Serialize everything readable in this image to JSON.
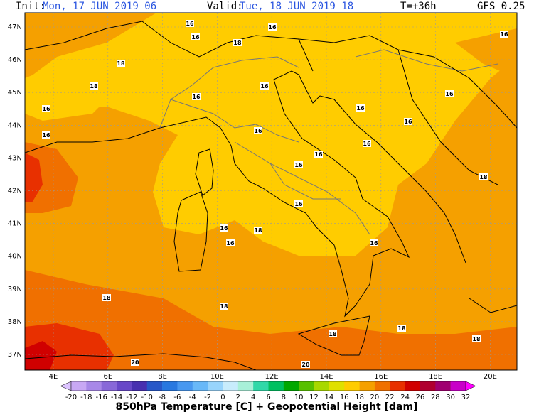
{
  "header": {
    "init_label": "Init:",
    "init_value": "Mon, 17 JUN 2019  06",
    "valid_label": "Valid:",
    "valid_value": "Tue, 18 JUN 2019  18",
    "lead": "T=+36h",
    "model": "GFS 0.25"
  },
  "lat_labels": [
    "47N",
    "46N",
    "45N",
    "44N",
    "43N",
    "42N",
    "41N",
    "40N",
    "39N",
    "38N",
    "37N"
  ],
  "lon_labels": [
    "4E",
    "6E",
    "8E",
    "10E",
    "12E",
    "14E",
    "16E",
    "18E",
    "20E"
  ],
  "contour_labels": [
    "16",
    "16",
    "16",
    "16",
    "18",
    "18",
    "18",
    "16",
    "16",
    "16",
    "16",
    "16",
    "16",
    "16",
    "16",
    "16",
    "16",
    "16",
    "18",
    "16",
    "16",
    "18",
    "16",
    "16",
    "18",
    "18",
    "18",
    "18",
    "18",
    "20",
    "20"
  ],
  "colorbar": {
    "labels": [
      "-20",
      "-18",
      "-16",
      "-14",
      "-12",
      "-10",
      "-8",
      "-6",
      "-4",
      "-2",
      "0",
      "2",
      "4",
      "6",
      "8",
      "10",
      "12",
      "14",
      "16",
      "18",
      "20",
      "22",
      "24",
      "26",
      "28",
      "30",
      "32"
    ],
    "colors": [
      "#c8a8f4",
      "#a888e8",
      "#8868d8",
      "#6848c8",
      "#4830b0",
      "#2858c8",
      "#2878e0",
      "#4898f0",
      "#68b8f8",
      "#98d4fc",
      "#c8ecfc",
      "#a8f0d8",
      "#30d8a8",
      "#00c060",
      "#00a800",
      "#58c000",
      "#a8d800",
      "#e0e000",
      "#ffcc00",
      "#f5a000",
      "#f07000",
      "#e83000",
      "#d00000",
      "#b00030",
      "#a00070",
      "#c800c8"
    ],
    "under_color": "#dcc4ff",
    "over_color": "#ff00ff"
  },
  "footer": "850hPa Temperature [C] + Geopotential Height [dam]"
}
